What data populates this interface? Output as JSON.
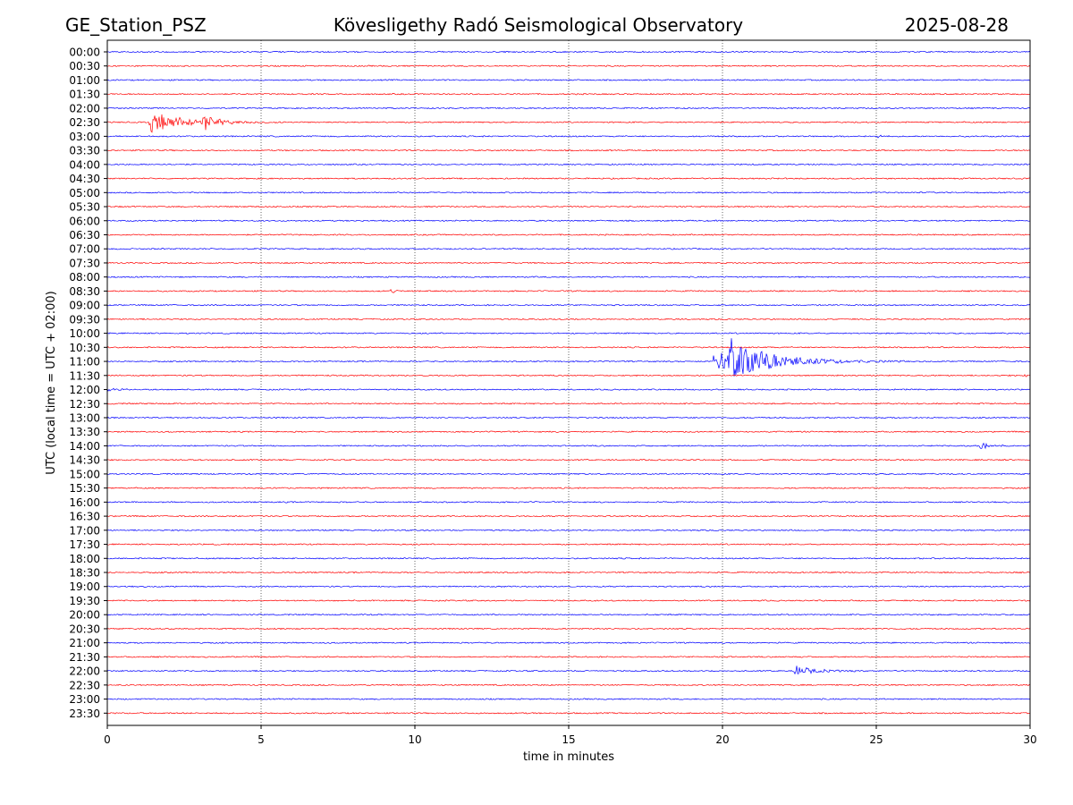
{
  "header": {
    "station": "GE_Station_PSZ",
    "observatory": "Kövesligethy Radó Seismological Observatory",
    "date": "2025-08-28"
  },
  "chart_data": {
    "type": "line",
    "title": "Kövesligethy Radó Seismological Observatory",
    "xlabel": "time in minutes",
    "ylabel": "UTC (local time = UTC + 02:00)",
    "xlim": [
      0,
      30
    ],
    "x_ticks": [
      0,
      5,
      10,
      15,
      20,
      25,
      30
    ],
    "grid": "vertical dotted lines at x ticks",
    "rows": [
      "00:00",
      "00:30",
      "01:00",
      "01:30",
      "02:00",
      "02:30",
      "03:00",
      "03:30",
      "04:00",
      "04:30",
      "05:00",
      "05:30",
      "06:00",
      "06:30",
      "07:00",
      "07:30",
      "08:00",
      "08:30",
      "09:00",
      "09:30",
      "10:00",
      "10:30",
      "11:00",
      "11:30",
      "12:00",
      "12:30",
      "13:00",
      "13:30",
      "14:00",
      "14:30",
      "15:00",
      "15:30",
      "16:00",
      "16:30",
      "17:00",
      "17:30",
      "18:00",
      "18:30",
      "19:00",
      "19:30",
      "20:00",
      "20:30",
      "21:00",
      "21:30",
      "22:00",
      "22:30",
      "23:00",
      "23:30"
    ],
    "row_colors": [
      "#0000ff",
      "#ff0000"
    ],
    "events": [
      {
        "row": "02:30",
        "start_min": 1.35,
        "end_min": 5.8,
        "peak_amplitude": 0.8
      },
      {
        "row": "02:30",
        "start_min": 3.1,
        "end_min": 4.5,
        "peak_amplitude": 0.7
      },
      {
        "row": "03:00",
        "start_min": 25.0,
        "end_min": 25.6,
        "peak_amplitude": 0.15
      },
      {
        "row": "08:30",
        "start_min": 9.2,
        "end_min": 9.7,
        "peak_amplitude": 0.2
      },
      {
        "row": "11:00",
        "start_min": 19.65,
        "end_min": 26.0,
        "peak_amplitude": 1.2
      },
      {
        "row": "11:00",
        "start_min": 20.2,
        "end_min": 24.0,
        "peak_amplitude": 1.1
      },
      {
        "row": "11:30",
        "start_min": 29.8,
        "end_min": 30.0,
        "peak_amplitude": 0.3
      },
      {
        "row": "12:00",
        "start_min": 0.0,
        "end_min": 1.0,
        "peak_amplitude": 0.15
      },
      {
        "row": "14:00",
        "start_min": 28.35,
        "end_min": 29.4,
        "peak_amplitude": 0.45
      },
      {
        "row": "22:00",
        "start_min": 22.3,
        "end_min": 24.5,
        "peak_amplitude": 0.45
      }
    ]
  }
}
